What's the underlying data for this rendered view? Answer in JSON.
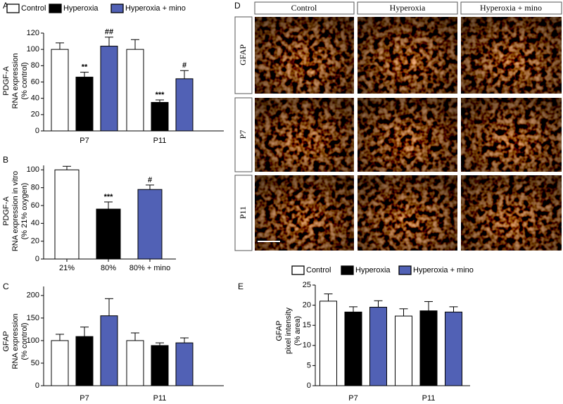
{
  "chart_data": [
    {
      "type": "bar",
      "panel": "A",
      "ylabel": [
        "PDGF-A",
        "RNA expression",
        "(% control)"
      ],
      "categories": [
        "P7",
        "P11"
      ],
      "legend": true,
      "series": [
        {
          "name": "Control",
          "color": "#ffffff",
          "values": [
            100,
            100
          ],
          "errors": [
            8,
            12
          ],
          "significance": [
            null,
            null
          ]
        },
        {
          "name": "Hyperoxia",
          "color": "#000000",
          "values": [
            66,
            35
          ],
          "errors": [
            6,
            3
          ],
          "significance": [
            "**",
            "***"
          ]
        },
        {
          "name": "Hyperoxia + mino",
          "color": "#5161b5",
          "values": [
            104,
            64
          ],
          "errors": [
            11,
            10
          ],
          "significance": [
            "##",
            "#"
          ]
        }
      ],
      "ylim": [
        0,
        120
      ],
      "yticks": [
        0,
        20,
        40,
        60,
        80,
        100,
        120
      ]
    },
    {
      "type": "bar",
      "panel": "B",
      "ylabel": [
        "PDGF-A",
        "RNA expression in vitro",
        "(% 21% oxygen)"
      ],
      "categories": [
        "21%",
        "80%",
        "80% + mino"
      ],
      "values": [
        100,
        56,
        78
      ],
      "errors": [
        4,
        8,
        5
      ],
      "colors": [
        "#ffffff",
        "#000000",
        "#5161b5"
      ],
      "significance": [
        null,
        "***",
        "#"
      ],
      "ylim": [
        0,
        105
      ],
      "yticks": [
        0,
        20,
        40,
        60,
        80,
        100
      ]
    },
    {
      "type": "bar",
      "panel": "C",
      "ylabel": [
        "GFAP",
        "RNA expression",
        "(% control)"
      ],
      "categories": [
        "P7",
        "P11"
      ],
      "legend": false,
      "series": [
        {
          "color": "#ffffff",
          "values": [
            100,
            100
          ],
          "errors": [
            14,
            17
          ]
        },
        {
          "color": "#000000",
          "values": [
            109,
            89
          ],
          "errors": [
            21,
            6
          ]
        },
        {
          "color": "#5161b5",
          "values": [
            155,
            95
          ],
          "errors": [
            38,
            11
          ]
        }
      ],
      "ylim": [
        0,
        220
      ],
      "yticks": [
        0,
        50,
        100,
        150,
        200
      ]
    },
    {
      "type": "bar",
      "panel": "E",
      "ylabel": [
        "GFAP",
        "pixel intensity",
        "(% area)"
      ],
      "categories": [
        "P7",
        "P11"
      ],
      "legend": true,
      "series": [
        {
          "name": "Control",
          "color": "#ffffff",
          "values": [
            21,
            17.3
          ],
          "errors": [
            1.8,
            1.8
          ]
        },
        {
          "name": "Hyperoxia",
          "color": "#000000",
          "values": [
            18.3,
            18.6
          ],
          "errors": [
            1.3,
            2.3
          ]
        },
        {
          "name": "Hyperoxia + mino",
          "color": "#5161b5",
          "values": [
            19.5,
            18.3
          ],
          "errors": [
            1.6,
            1.3
          ]
        }
      ],
      "ylim": [
        0,
        25
      ],
      "yticks": [
        0,
        5,
        10,
        15,
        20,
        25
      ]
    }
  ],
  "image_panel": {
    "panel": "D",
    "columns": [
      "Control",
      "Hyperoxia",
      "Hyperoxia + mino"
    ],
    "rows": [
      "GFAP",
      "P7",
      "P11"
    ]
  }
}
